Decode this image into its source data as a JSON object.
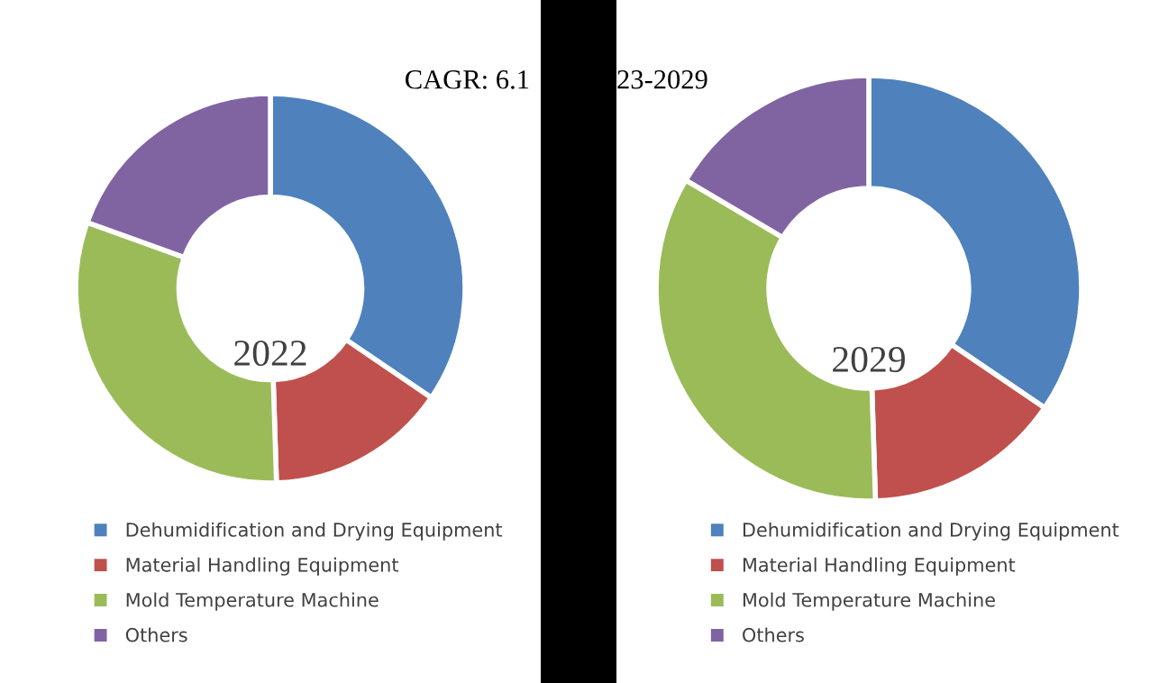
{
  "chart_data": [
    {
      "type": "donut",
      "title": "2022",
      "categories": [
        "Dehumidification and Drying Equipment",
        "Material Handling Equipment",
        "Mold Temperature Machine",
        "Others"
      ],
      "values": [
        34.5,
        15,
        31,
        19.5
      ],
      "colors": [
        "#4f81bd",
        "#c0504d",
        "#9bbb59",
        "#8064a2"
      ],
      "legend": "bottom",
      "annotations": [
        "CAGR: 6.1"
      ]
    },
    {
      "type": "donut",
      "title": "2029",
      "categories": [
        "Dehumidification and Drying Equipment",
        "Material Handling Equipment",
        "Mold Temperature Machine",
        "Others"
      ],
      "values": [
        34.5,
        15,
        34,
        16.5
      ],
      "colors": [
        "#4f81bd",
        "#c0504d",
        "#9bbb59",
        "#8064a2"
      ],
      "legend": "bottom",
      "annotations": [
        "23-2029"
      ]
    }
  ]
}
